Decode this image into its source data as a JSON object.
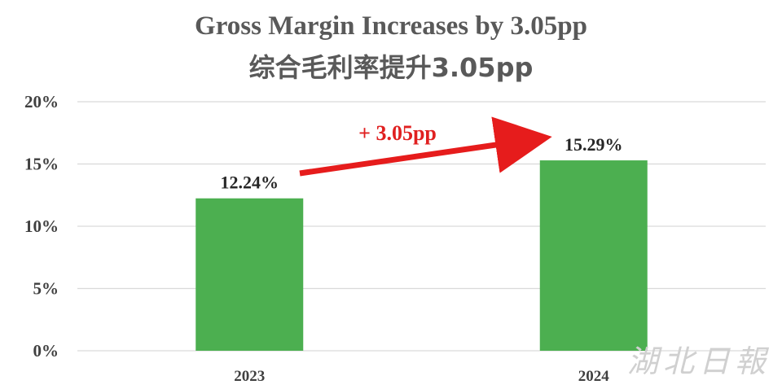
{
  "title_en": "Gross Margin Increases by 3.05pp",
  "title_zh": "综合毛利率提升3.05pp",
  "watermark": "湖北日報",
  "colors": {
    "bar": "#4caf50",
    "arrow": "#e61c1c",
    "grid": "#d9d9d9"
  },
  "chart_data": {
    "type": "bar",
    "categories": [
      "2023",
      "2024"
    ],
    "values": [
      12.24,
      15.29
    ],
    "data_labels": [
      "12.24%",
      "15.29%"
    ],
    "title": "Gross Margin Increases by 3.05pp",
    "subtitle": "综合毛利率提升3.05pp",
    "ylim": [
      0,
      20
    ],
    "yticks": [
      0,
      5,
      10,
      15,
      20
    ],
    "ytick_labels": [
      "0%",
      "5%",
      "10%",
      "15%",
      "20%"
    ],
    "grid": true,
    "annotation": "+ 3.05pp"
  }
}
